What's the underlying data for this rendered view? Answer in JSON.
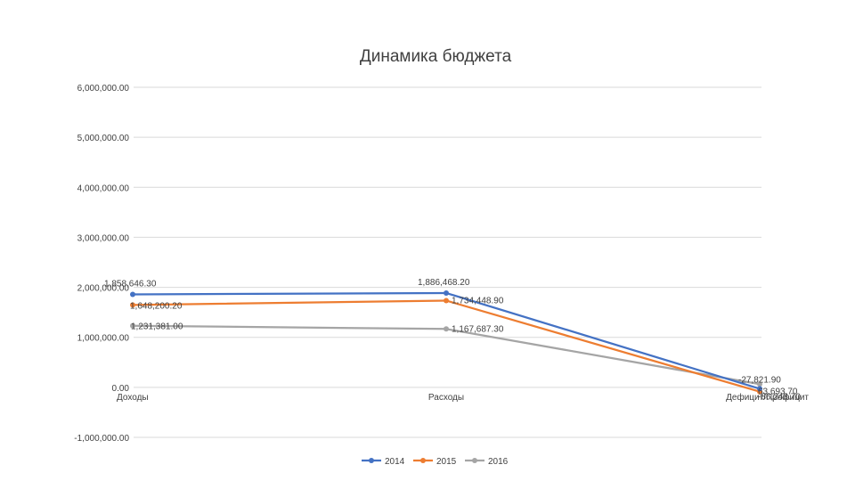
{
  "chart_data": {
    "type": "line",
    "title": "Динамика бюджета",
    "categories": [
      "Доходы",
      "Расходы",
      "Дефицит/Профицит"
    ],
    "y_ticks": [
      "-1,000,000.00",
      "0.00",
      "1,000,000.00",
      "2,000,000.00",
      "3,000,000.00",
      "4,000,000.00",
      "5,000,000.00",
      "6,000,000.00"
    ],
    "ylim": [
      -1000000,
      6000000
    ],
    "grid": true,
    "legend_position": "bottom",
    "series": [
      {
        "name": "2014",
        "color": "#4472c4",
        "values": [
          1858646.3,
          1886468.2,
          -27821.9
        ],
        "labels": [
          "1,858,646.30",
          "1,886,468.20",
          "-27,821.90"
        ]
      },
      {
        "name": "2015",
        "color": "#ed7d31",
        "values": [
          1648200.2,
          1734448.9,
          -86248.7
        ],
        "labels": [
          "1,648,200.20",
          "1,734,448.90",
          "-86,248.70"
        ]
      },
      {
        "name": "2016",
        "color": "#a5a5a5",
        "values": [
          1231381.0,
          1167687.3,
          63693.7
        ],
        "labels": [
          "1,231,381.00",
          "1,167,687.30",
          "63,693.70"
        ]
      }
    ]
  }
}
